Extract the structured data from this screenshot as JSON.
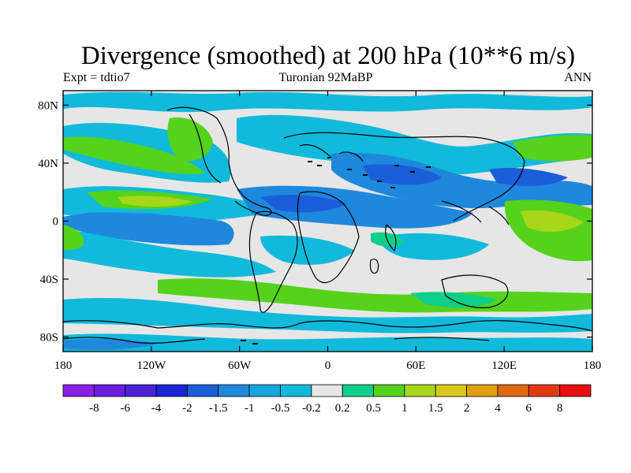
{
  "title": "Divergence (smoothed) at 200 hPa (10**6 m/s)",
  "subtitle_left": "Expt = tdtio7",
  "subtitle_center": "Turonian  92MaBP",
  "subtitle_right": "ANN",
  "map": {
    "projection": "cylindrical-equidistant",
    "lon_range": [
      -180,
      180
    ],
    "lat_range": [
      -90,
      90
    ],
    "lon_ticks": [
      {
        "value": -180,
        "label": "180"
      },
      {
        "value": -120,
        "label": "120W"
      },
      {
        "value": -60,
        "label": "60W"
      },
      {
        "value": 0,
        "label": "0"
      },
      {
        "value": 60,
        "label": "60E"
      },
      {
        "value": 120,
        "label": "120E"
      },
      {
        "value": 180,
        "label": "180"
      }
    ],
    "lat_ticks": [
      {
        "value": 80,
        "label": "80N"
      },
      {
        "value": 40,
        "label": "40N"
      },
      {
        "value": 0,
        "label": "0"
      },
      {
        "value": -40,
        "label": "40S"
      },
      {
        "value": -80,
        "label": "80S"
      }
    ]
  },
  "colorbar": {
    "labels": [
      "-8",
      "-6",
      "-4",
      "-2",
      "-1.5",
      "-1",
      "-0.5",
      "-0.2",
      "0.2",
      "0.5",
      "1",
      "1.5",
      "2",
      "4",
      "6",
      "8"
    ],
    "colors": [
      "#8a1fe6",
      "#6a1ee0",
      "#4a22d8",
      "#1c24d6",
      "#1a5ed8",
      "#1e88dc",
      "#14a6dc",
      "#11badb",
      "#e6e6e6",
      "#10cf8a",
      "#55d21c",
      "#a8d61a",
      "#d8c81a",
      "#e0a012",
      "#e06a12",
      "#e23a12",
      "#e60e0e"
    ]
  },
  "palette": {
    "background": "#e6e6e6",
    "cyan": "#11badb",
    "blue_light": "#14a6dc",
    "blue": "#1e88dc",
    "blue_dark": "#1a5ed8",
    "teal": "#10cf8a",
    "green": "#55d21c",
    "yellow_green": "#a8d61a",
    "yellow": "#d8c81a"
  }
}
